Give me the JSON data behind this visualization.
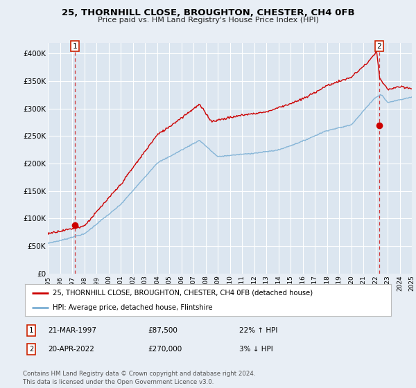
{
  "title": "25, THORNHILL CLOSE, BROUGHTON, CHESTER, CH4 0FB",
  "subtitle": "Price paid vs. HM Land Registry's House Price Index (HPI)",
  "bg_color": "#e8eef5",
  "plot_bg_color": "#dce6f0",
  "grid_color": "#ffffff",
  "red_line_color": "#cc0000",
  "blue_line_color": "#7bafd4",
  "xlim_years": [
    1995,
    2025
  ],
  "ylim": [
    0,
    420000
  ],
  "yticks": [
    0,
    50000,
    100000,
    150000,
    200000,
    250000,
    300000,
    350000,
    400000
  ],
  "ytick_labels": [
    "£0",
    "£50K",
    "£100K",
    "£150K",
    "£200K",
    "£250K",
    "£300K",
    "£350K",
    "£400K"
  ],
  "xticks": [
    1995,
    1996,
    1997,
    1998,
    1999,
    2000,
    2001,
    2002,
    2003,
    2004,
    2005,
    2006,
    2007,
    2008,
    2009,
    2010,
    2011,
    2012,
    2013,
    2014,
    2015,
    2016,
    2017,
    2018,
    2019,
    2020,
    2021,
    2022,
    2023,
    2024,
    2025
  ],
  "sale1_year": 1997.22,
  "sale1_price": 87500,
  "sale2_year": 2022.3,
  "sale2_price": 270000,
  "legend_label1": "25, THORNHILL CLOSE, BROUGHTON, CHESTER, CH4 0FB (detached house)",
  "legend_label2": "HPI: Average price, detached house, Flintshire",
  "annotation1_date": "21-MAR-1997",
  "annotation1_price": "£87,500",
  "annotation1_hpi": "22% ↑ HPI",
  "annotation2_date": "20-APR-2022",
  "annotation2_price": "£270,000",
  "annotation2_hpi": "3% ↓ HPI",
  "footer": "Contains HM Land Registry data © Crown copyright and database right 2024.\nThis data is licensed under the Open Government Licence v3.0."
}
